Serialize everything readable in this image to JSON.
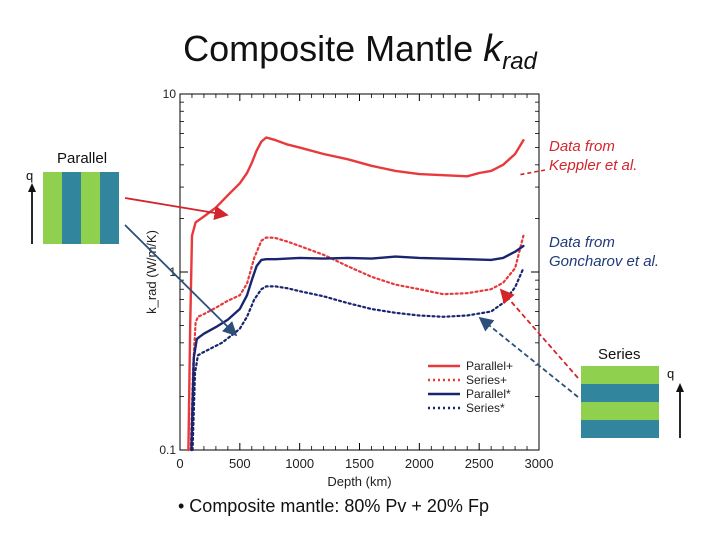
{
  "title": {
    "main": "Composite Mantle ",
    "k": "k",
    "sub": "rad"
  },
  "annotations": {
    "keppler": [
      "Data from",
      "Keppler et al."
    ],
    "goncharov": [
      "Data from",
      "Goncharov et al."
    ],
    "parallel_label": "Parallel",
    "series_label": "Series",
    "q_left": "q",
    "q_right": "q"
  },
  "bullet": "• Composite mantle: 80% Pv + 20% Fp",
  "colors": {
    "red": "#e8393c",
    "navy": "#1a2570",
    "green": "#8fd14f",
    "teal": "#31859c",
    "arrow_red": "#d2262c",
    "arrow_blue": "#2c4f7c"
  },
  "chart_data": {
    "type": "line",
    "xlabel": "Depth (km)",
    "ylabel": "k_rad (W/m/K)",
    "xlim": [
      0,
      3000
    ],
    "ylim": [
      0.1,
      10
    ],
    "yscale": "log",
    "xticks": [
      0,
      500,
      1000,
      1500,
      2000,
      2500,
      3000
    ],
    "yticks": [
      0.1,
      1,
      10
    ],
    "legend": "bottom-right",
    "series": [
      {
        "name": "Parallel+",
        "color": "#e8393c",
        "style": "solid",
        "x": [
          70,
          85,
          100,
          130,
          200,
          300,
          400,
          500,
          560,
          600,
          640,
          680,
          720,
          760,
          800,
          900,
          1000,
          1200,
          1400,
          1600,
          1800,
          2000,
          2200,
          2400,
          2500,
          2600,
          2700,
          2800,
          2870
        ],
        "y": [
          0.1,
          0.5,
          1.6,
          1.9,
          2.05,
          2.3,
          2.7,
          3.15,
          3.6,
          4.1,
          4.8,
          5.4,
          5.7,
          5.6,
          5.5,
          5.2,
          5.0,
          4.6,
          4.3,
          3.95,
          3.7,
          3.55,
          3.5,
          3.45,
          3.6,
          3.7,
          4.0,
          4.6,
          5.5
        ]
      },
      {
        "name": "Series+",
        "color": "#e8393c",
        "style": "dotted",
        "x": [
          90,
          110,
          130,
          150,
          200,
          300,
          400,
          500,
          560,
          620,
          680,
          720,
          760,
          800,
          900,
          1000,
          1200,
          1400,
          1600,
          1800,
          2000,
          2200,
          2400,
          2600,
          2700,
          2800,
          2870
        ],
        "y": [
          0.1,
          0.3,
          0.52,
          0.56,
          0.58,
          0.63,
          0.69,
          0.74,
          0.86,
          1.2,
          1.5,
          1.56,
          1.56,
          1.55,
          1.48,
          1.4,
          1.25,
          1.08,
          0.94,
          0.85,
          0.8,
          0.75,
          0.76,
          0.8,
          0.87,
          1.05,
          1.6
        ]
      },
      {
        "name": "Parallel*",
        "color": "#1a2570",
        "style": "solid",
        "x": [
          95,
          115,
          140,
          160,
          200,
          300,
          400,
          500,
          560,
          600,
          640,
          680,
          720,
          800,
          900,
          1000,
          1200,
          1400,
          1600,
          1800,
          2000,
          2200,
          2400,
          2600,
          2700,
          2800,
          2870
        ],
        "y": [
          0.1,
          0.33,
          0.42,
          0.43,
          0.45,
          0.49,
          0.54,
          0.62,
          0.74,
          0.9,
          1.08,
          1.17,
          1.18,
          1.18,
          1.19,
          1.2,
          1.19,
          1.2,
          1.19,
          1.22,
          1.2,
          1.19,
          1.18,
          1.17,
          1.2,
          1.3,
          1.4
        ]
      },
      {
        "name": "Series*",
        "color": "#1a2570",
        "style": "dotted",
        "x": [
          105,
          125,
          150,
          180,
          250,
          350,
          450,
          500,
          560,
          620,
          680,
          720,
          800,
          900,
          1000,
          1200,
          1400,
          1600,
          1800,
          2000,
          2200,
          2400,
          2600,
          2700,
          2800,
          2870
        ],
        "y": [
          0.1,
          0.27,
          0.34,
          0.35,
          0.37,
          0.4,
          0.45,
          0.48,
          0.56,
          0.7,
          0.8,
          0.83,
          0.83,
          0.81,
          0.78,
          0.73,
          0.67,
          0.62,
          0.59,
          0.57,
          0.56,
          0.57,
          0.6,
          0.67,
          0.82,
          1.05
        ]
      }
    ]
  }
}
